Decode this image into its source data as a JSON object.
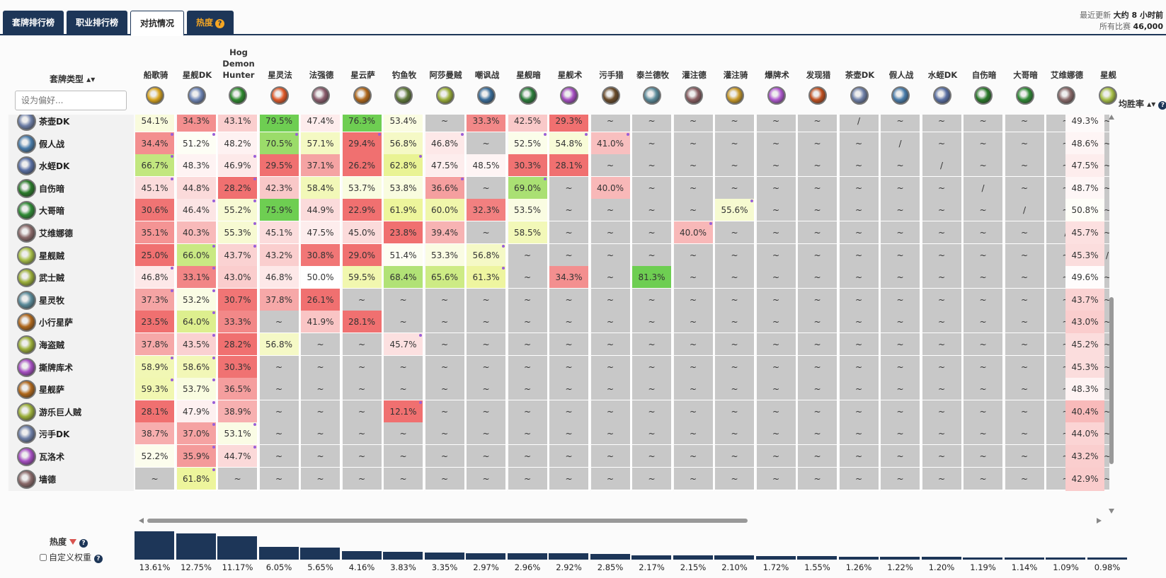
{
  "tabs": [
    {
      "label": "套牌排行榜"
    },
    {
      "label": "职业排行榜"
    },
    {
      "label": "对抗情况"
    },
    {
      "label": "热度",
      "badge": "?"
    }
  ],
  "updated": {
    "line1_prefix": "最近更新",
    "line1_value": "大约 8 小时前",
    "line2_prefix": "所有比赛",
    "line2_value": "46,000"
  },
  "corner": {
    "label": "套牌类型 ▴▾",
    "placeholder": "设为偏好..."
  },
  "avg_header": {
    "label": "均胜率 ▴▾",
    "help": "?"
  },
  "colors": {
    "navy": "#1d3658",
    "dot": "#9a5fd8"
  },
  "columns": [
    {
      "name": "船歌骑",
      "color": "#d9a520"
    },
    {
      "name": "星舰DK",
      "color": "#6f86b6"
    },
    {
      "name": "Hog Demon Hunter",
      "color": "#2f8a2f"
    },
    {
      "name": "星灵法",
      "color": "#e05a2a"
    },
    {
      "name": "法强德",
      "color": "#8b5d6d"
    },
    {
      "name": "星云萨",
      "color": "#b0681c"
    },
    {
      "name": "钓鱼牧",
      "color": "#607a3a"
    },
    {
      "name": "阿莎曼贼",
      "color": "#9cb03a"
    },
    {
      "name": "嘲讽战",
      "color": "#3a6d9a"
    },
    {
      "name": "星舰暗",
      "color": "#2b7d3a"
    },
    {
      "name": "星舰术",
      "color": "#a64fc2"
    },
    {
      "name": "污手猎",
      "color": "#6a4b2a"
    },
    {
      "name": "泰兰德牧",
      "color": "#5b8b9a"
    },
    {
      "name": "灌注德",
      "color": "#8a5e62"
    },
    {
      "name": "灌注骑",
      "color": "#c99a2a"
    },
    {
      "name": "爆牌术",
      "color": "#b05ad0"
    },
    {
      "name": "发现猎",
      "color": "#c05020"
    },
    {
      "name": "茶壶DK",
      "color": "#6f80a8"
    },
    {
      "name": "假人战",
      "color": "#4a7dab"
    },
    {
      "name": "水蛭DK",
      "color": "#5a70a4"
    },
    {
      "name": "自伤暗",
      "color": "#2a7a2a"
    },
    {
      "name": "大哥暗",
      "color": "#2f8a35"
    },
    {
      "name": "艾维娜德",
      "color": "#8a6a6a"
    },
    {
      "name": "星舰",
      "color": "#a8c048"
    }
  ],
  "rows": [
    {
      "name": "茶壶DK",
      "color": "#6f80a8",
      "avg": "49.3%",
      "cells": [
        "54.1%",
        "34.3%",
        "43.1%",
        "79.5%",
        "47.4%",
        "76.3%",
        "53.4%",
        "~",
        "33.3%",
        "42.5%",
        "29.3%",
        "~",
        "~",
        "~",
        "~",
        "~",
        "~",
        "/",
        "~",
        "~",
        "~",
        "~",
        "~",
        "~"
      ]
    },
    {
      "name": "假人战",
      "color": "#4a7dab",
      "avg": "48.6%",
      "cells": [
        "34.4%",
        "51.2%",
        "48.2%",
        "70.5%",
        "57.1%",
        "29.4%",
        "56.8%",
        "46.8%",
        "~",
        "52.5%",
        "54.8%",
        "41.0%",
        "~",
        "~",
        "~",
        "~",
        "~",
        "~",
        "/",
        "~",
        "~",
        "~",
        "~",
        "~"
      ]
    },
    {
      "name": "水蛭DK",
      "color": "#5a70a4",
      "avg": "47.5%",
      "cells": [
        "66.7%",
        "48.3%",
        "46.9%",
        "29.5%",
        "37.1%",
        "26.2%",
        "62.8%",
        "47.5%",
        "48.5%",
        "30.3%",
        "28.1%",
        "~",
        "~",
        "~",
        "~",
        "~",
        "~",
        "~",
        "~",
        "/",
        "~",
        "~",
        "~",
        "~"
      ]
    },
    {
      "name": "自伤暗",
      "color": "#2a7a2a",
      "avg": "48.7%",
      "cells": [
        "45.1%",
        "44.8%",
        "28.2%",
        "42.3%",
        "58.4%",
        "53.7%",
        "53.8%",
        "36.6%",
        "~",
        "69.0%",
        "~",
        "40.0%",
        "~",
        "~",
        "~",
        "~",
        "~",
        "~",
        "~",
        "~",
        "/",
        "~",
        "~",
        "~"
      ]
    },
    {
      "name": "大哥暗",
      "color": "#2f8a35",
      "avg": "50.8%",
      "cells": [
        "30.6%",
        "46.4%",
        "55.2%",
        "75.9%",
        "44.9%",
        "22.9%",
        "61.9%",
        "60.0%",
        "32.3%",
        "53.5%",
        "~",
        "~",
        "~",
        "~",
        "55.6%",
        "~",
        "~",
        "~",
        "~",
        "~",
        "~",
        "/",
        "~",
        "~"
      ]
    },
    {
      "name": "艾维娜德",
      "color": "#8a6a6a",
      "avg": "45.7%",
      "cells": [
        "35.1%",
        "40.3%",
        "55.3%",
        "45.1%",
        "47.5%",
        "45.0%",
        "23.8%",
        "39.4%",
        "~",
        "58.5%",
        "~",
        "~",
        "~",
        "40.0%",
        "~",
        "~",
        "~",
        "~",
        "~",
        "~",
        "~",
        "~",
        "/",
        "~"
      ]
    },
    {
      "name": "星舰贼",
      "color": "#a8c048",
      "avg": "45.3%",
      "cells": [
        "25.0%",
        "66.0%",
        "43.7%",
        "43.2%",
        "30.8%",
        "29.0%",
        "51.4%",
        "53.3%",
        "56.8%",
        "~",
        "~",
        "~",
        "~",
        "~",
        "~",
        "~",
        "~",
        "~",
        "~",
        "~",
        "~",
        "~",
        "~",
        "/"
      ]
    },
    {
      "name": "武士贼",
      "color": "#9cb03a",
      "avg": "49.6%",
      "cells": [
        "46.8%",
        "33.1%",
        "43.0%",
        "46.8%",
        "50.0%",
        "59.5%",
        "68.4%",
        "65.6%",
        "61.3%",
        "~",
        "34.3%",
        "~",
        "81.3%",
        "~",
        "~",
        "~",
        "~",
        "~",
        "~",
        "~",
        "~",
        "~",
        "~",
        "~"
      ]
    },
    {
      "name": "星灵牧",
      "color": "#5b8b9a",
      "avg": "43.7%",
      "cells": [
        "37.3%",
        "53.2%",
        "30.7%",
        "37.8%",
        "26.1%",
        "~",
        "~",
        "~",
        "~",
        "~",
        "~",
        "~",
        "~",
        "~",
        "~",
        "~",
        "~",
        "~",
        "~",
        "~",
        "~",
        "~",
        "~",
        "~"
      ]
    },
    {
      "name": "小行星萨",
      "color": "#b0681c",
      "avg": "43.0%",
      "cells": [
        "23.5%",
        "64.0%",
        "33.3%",
        "~",
        "41.9%",
        "28.1%",
        "~",
        "~",
        "~",
        "~",
        "~",
        "~",
        "~",
        "~",
        "~",
        "~",
        "~",
        "~",
        "~",
        "~",
        "~",
        "~",
        "~",
        "~"
      ]
    },
    {
      "name": "海盗贼",
      "color": "#9cb03a",
      "avg": "45.2%",
      "cells": [
        "37.8%",
        "43.5%",
        "28.2%",
        "56.8%",
        "~",
        "~",
        "45.7%",
        "~",
        "~",
        "~",
        "~",
        "~",
        "~",
        "~",
        "~",
        "~",
        "~",
        "~",
        "~",
        "~",
        "~",
        "~",
        "~",
        "~"
      ]
    },
    {
      "name": "撕牌库术",
      "color": "#a64fc2",
      "avg": "45.3%",
      "cells": [
        "58.9%",
        "58.6%",
        "30.3%",
        "~",
        "~",
        "~",
        "~",
        "~",
        "~",
        "~",
        "~",
        "~",
        "~",
        "~",
        "~",
        "~",
        "~",
        "~",
        "~",
        "~",
        "~",
        "~",
        "~",
        "~"
      ]
    },
    {
      "name": "星舰萨",
      "color": "#b0681c",
      "avg": "48.3%",
      "cells": [
        "59.3%",
        "53.7%",
        "36.5%",
        "~",
        "~",
        "~",
        "~",
        "~",
        "~",
        "~",
        "~",
        "~",
        "~",
        "~",
        "~",
        "~",
        "~",
        "~",
        "~",
        "~",
        "~",
        "~",
        "~",
        "~"
      ]
    },
    {
      "name": "游乐巨人贼",
      "color": "#9cb03a",
      "avg": "40.4%",
      "cells": [
        "28.1%",
        "47.9%",
        "38.9%",
        "~",
        "~",
        "~",
        "12.1%",
        "~",
        "~",
        "~",
        "~",
        "~",
        "~",
        "~",
        "~",
        "~",
        "~",
        "~",
        "~",
        "~",
        "~",
        "~",
        "~",
        "~"
      ]
    },
    {
      "name": "污手DK",
      "color": "#6f80a8",
      "avg": "44.0%",
      "cells": [
        "38.7%",
        "37.0%",
        "53.1%",
        "~",
        "~",
        "~",
        "~",
        "~",
        "~",
        "~",
        "~",
        "~",
        "~",
        "~",
        "~",
        "~",
        "~",
        "~",
        "~",
        "~",
        "~",
        "~",
        "~",
        "~"
      ]
    },
    {
      "name": "瓦洛术",
      "color": "#a64fc2",
      "avg": "43.2%",
      "cells": [
        "52.2%",
        "35.9%",
        "44.7%",
        "~",
        "~",
        "~",
        "~",
        "~",
        "~",
        "~",
        "~",
        "~",
        "~",
        "~",
        "~",
        "~",
        "~",
        "~",
        "~",
        "~",
        "~",
        "~",
        "~",
        "~"
      ]
    },
    {
      "name": "墙德",
      "color": "#8a6a6a",
      "avg": "42.9%",
      "cells": [
        "~",
        "61.8%",
        "~",
        "~",
        "~",
        "~",
        "~",
        "~",
        "~",
        "~",
        "~",
        "~",
        "~",
        "~",
        "~",
        "~",
        "~",
        "~",
        "~",
        "~",
        "~",
        "~",
        "~",
        "~"
      ]
    }
  ],
  "dots": [
    [
      0,
      1
    ],
    [
      0,
      2
    ],
    [
      0,
      6
    ],
    [
      1,
      0
    ],
    [
      1,
      1
    ],
    [
      1,
      3
    ],
    [
      1,
      5
    ],
    [
      1,
      7
    ],
    [
      1,
      9
    ],
    [
      1,
      10
    ],
    [
      1,
      11
    ],
    [
      2,
      0
    ],
    [
      2,
      2
    ],
    [
      2,
      6
    ],
    [
      3,
      0
    ],
    [
      3,
      2
    ],
    [
      3,
      7
    ],
    [
      3,
      9
    ],
    [
      4,
      1
    ],
    [
      4,
      2
    ],
    [
      4,
      14
    ],
    [
      5,
      2
    ],
    [
      5,
      13
    ],
    [
      6,
      1
    ],
    [
      6,
      2
    ],
    [
      6,
      8
    ],
    [
      7,
      0
    ],
    [
      7,
      1
    ],
    [
      7,
      8
    ],
    [
      8,
      0
    ],
    [
      8,
      1
    ],
    [
      9,
      1
    ],
    [
      10,
      1
    ],
    [
      10,
      6
    ],
    [
      11,
      0
    ],
    [
      11,
      1
    ],
    [
      12,
      0
    ],
    [
      12,
      1
    ],
    [
      13,
      1
    ],
    [
      13,
      6
    ],
    [
      14,
      1
    ],
    [
      14,
      2
    ],
    [
      15,
      1
    ],
    [
      15,
      2
    ],
    [
      16,
      1
    ]
  ],
  "footer": {
    "hot_label": "热度",
    "custom_label": "自定义权重",
    "help": "?",
    "popularity": [
      "13.61%",
      "12.75%",
      "11.17%",
      "6.05%",
      "5.65%",
      "4.16%",
      "3.83%",
      "3.35%",
      "2.97%",
      "2.96%",
      "2.92%",
      "2.85%",
      "2.17%",
      "2.15%",
      "2.10%",
      "1.72%",
      "1.55%",
      "1.26%",
      "1.22%",
      "1.20%",
      "1.19%",
      "1.14%",
      "1.09%",
      "0.98%"
    ]
  }
}
